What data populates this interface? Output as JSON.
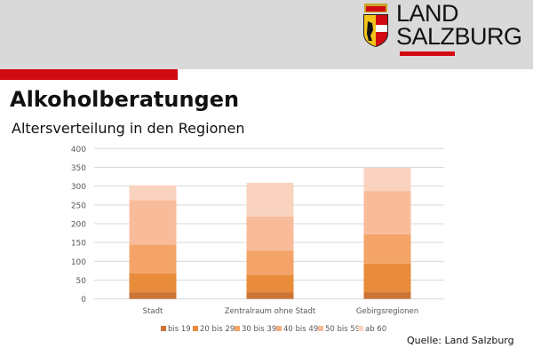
{
  "header": {
    "brand_line1": "LAND",
    "brand_line2": "SALZBURG"
  },
  "title": "Alkoholberatungen",
  "subtitle": "Altersverteilung in den Regionen",
  "source": "Quelle: Land Salzburg",
  "chart_data": {
    "type": "bar",
    "stacked": true,
    "title": "",
    "xlabel": "",
    "ylabel": "",
    "ylim": [
      0,
      400
    ],
    "yticks": [
      0,
      50,
      100,
      150,
      200,
      250,
      300,
      350,
      400
    ],
    "categories": [
      "Stadt",
      "Zentralraum ohne Stadt",
      "Gebirgsregionen"
    ],
    "series": [
      {
        "name": "bis 19",
        "color": "#cc7536",
        "values": [
          18,
          18,
          18
        ]
      },
      {
        "name": "20 bis 29",
        "color": "#e88c3c",
        "values": [
          50,
          46,
          76
        ]
      },
      {
        "name": "30 bis 39",
        "color": "#f4a468",
        "values": [
          77,
          64,
          78
        ]
      },
      {
        "name": "40 bis 49",
        "color": "#f6ae7e",
        "values": [
          0,
          0,
          0
        ]
      },
      {
        "name": "50 bis 59",
        "color": "#f8bc9a",
        "values": [
          118,
          91,
          115
        ]
      },
      {
        "name": "ab 60",
        "color": "#f9d3bf",
        "values": [
          39,
          90,
          62
        ]
      }
    ],
    "grid": true,
    "legend": "bottom"
  }
}
